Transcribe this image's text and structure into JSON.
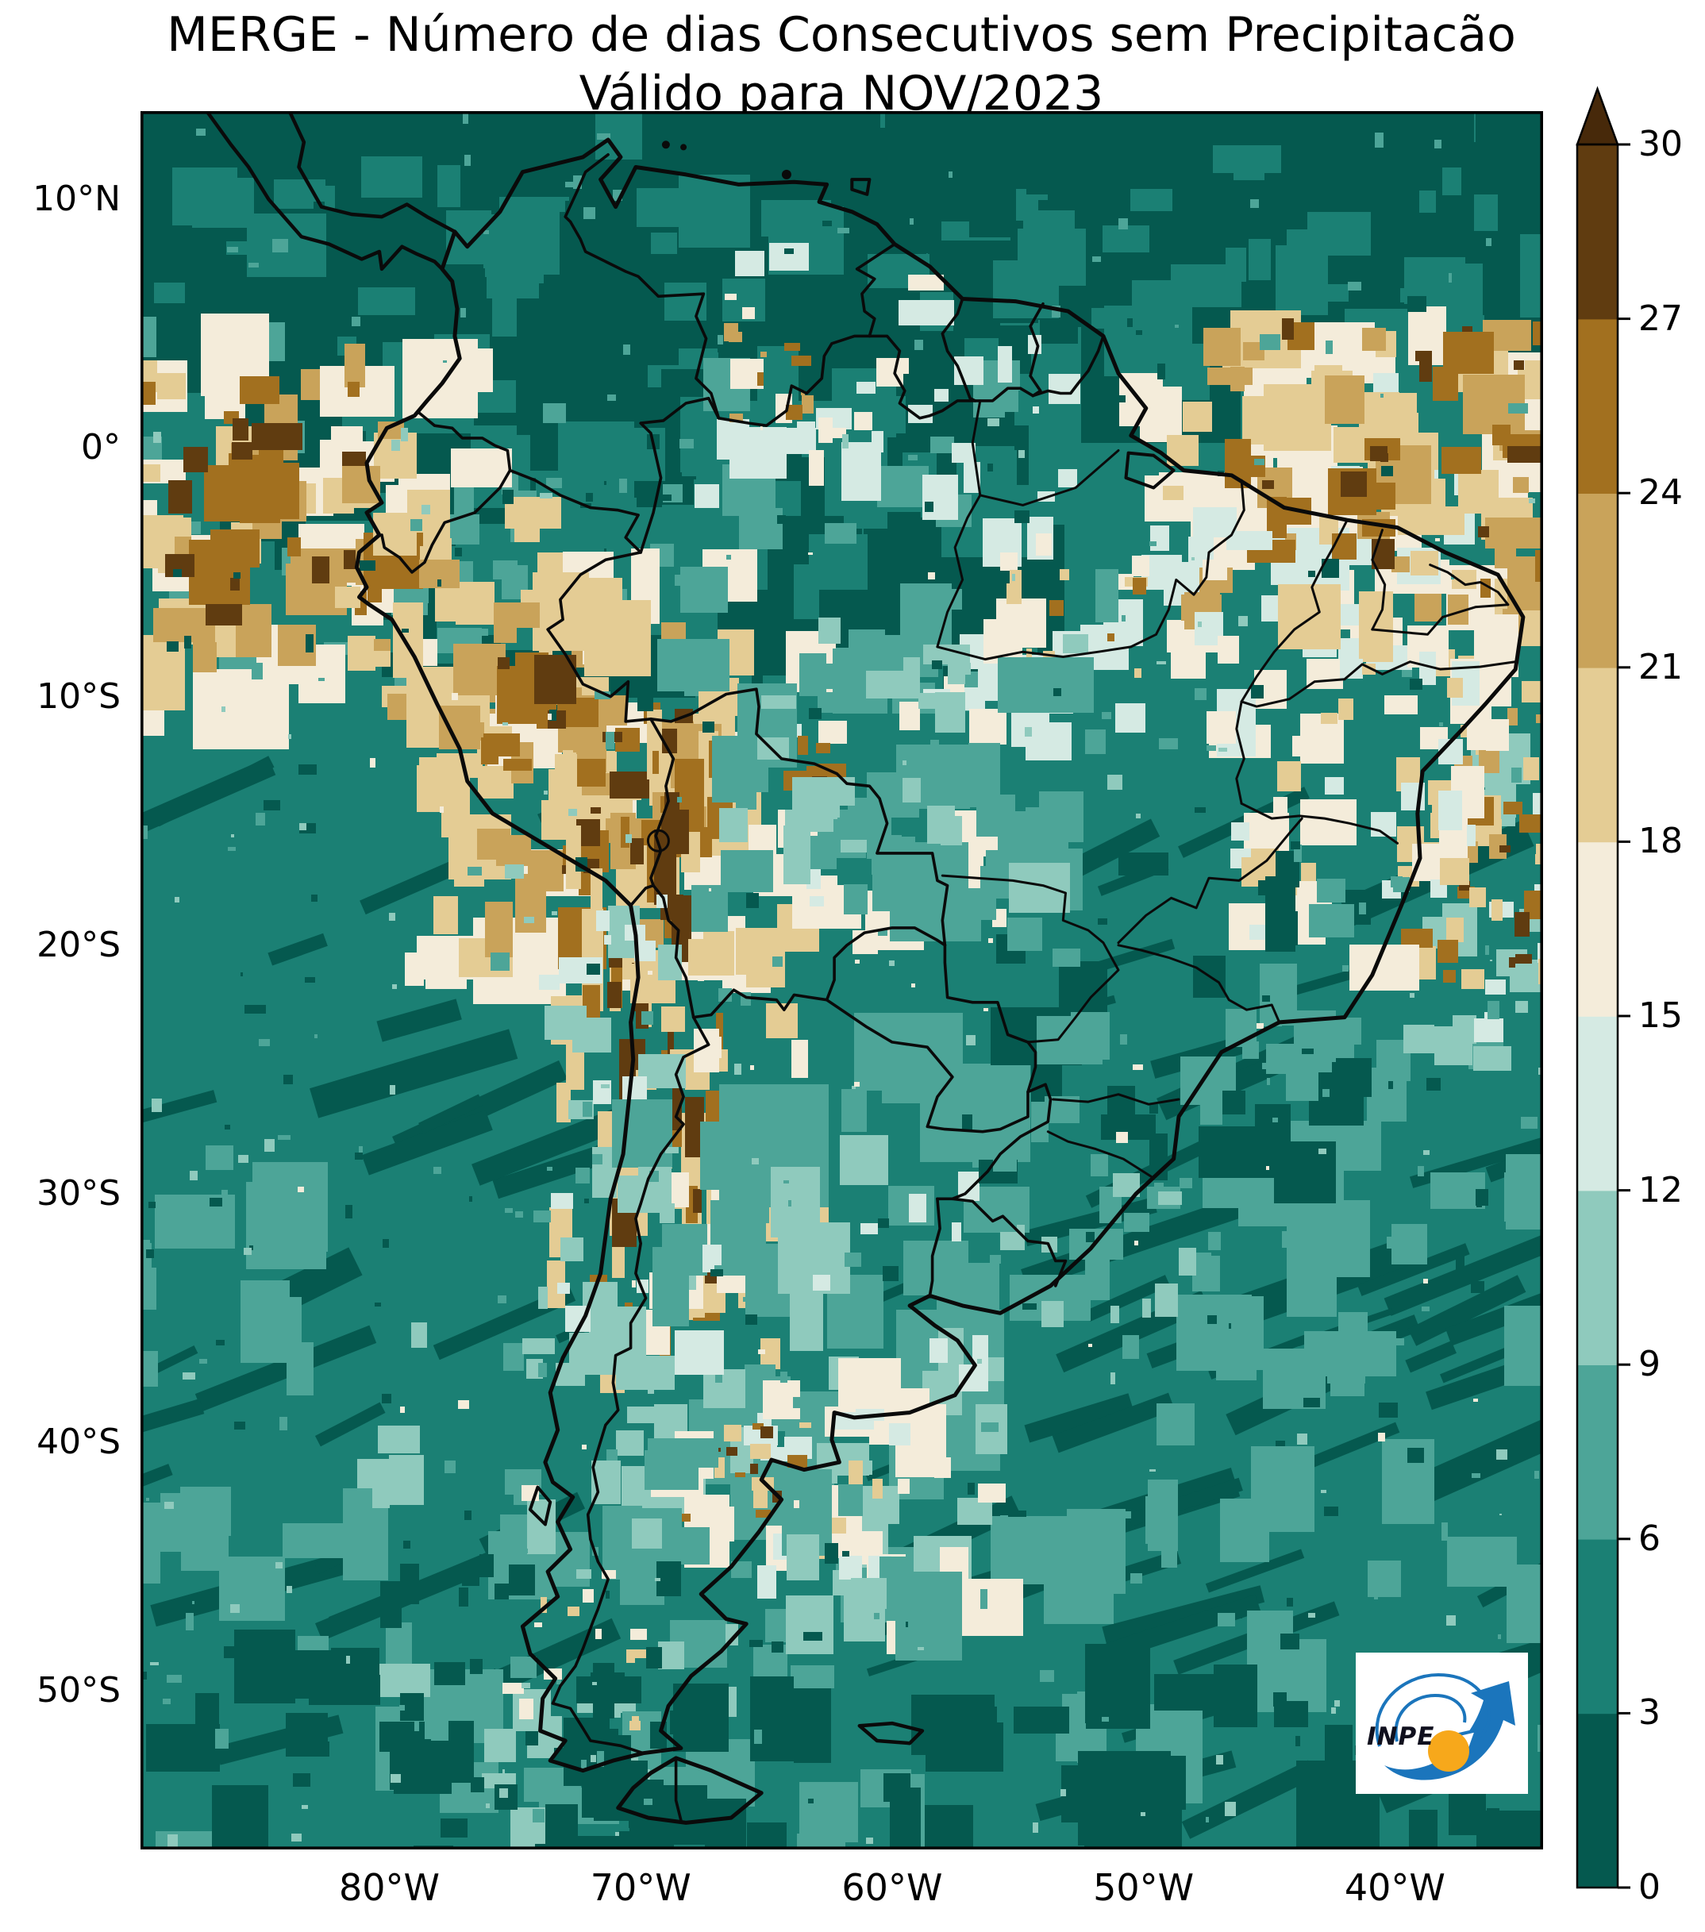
{
  "title": {
    "line1": "MERGE - Número de dias Consecutivos sem Precipitacão",
    "line2": "Válido para NOV/2023"
  },
  "axes": {
    "lat_ticks": [
      {
        "label": "10°N",
        "deg": 10
      },
      {
        "label": "0°",
        "deg": 0
      },
      {
        "label": "10°S",
        "deg": -10
      },
      {
        "label": "20°S",
        "deg": -20
      },
      {
        "label": "30°S",
        "deg": -30
      },
      {
        "label": "40°S",
        "deg": -40
      },
      {
        "label": "50°S",
        "deg": -50
      }
    ],
    "lon_ticks": [
      {
        "label": "80°W",
        "deg": -80
      },
      {
        "label": "70°W",
        "deg": -70
      },
      {
        "label": "60°W",
        "deg": -60
      },
      {
        "label": "50°W",
        "deg": -50
      },
      {
        "label": "40°W",
        "deg": -40
      }
    ]
  },
  "colorbar": {
    "tick_labels": [
      "0",
      "3",
      "6",
      "9",
      "12",
      "15",
      "18",
      "21",
      "24",
      "27",
      "30"
    ],
    "bin_colors": [
      "#05594F",
      "#1B8074",
      "#4DA598",
      "#8FCABD",
      "#D5EAE3",
      "#F4ECDA",
      "#E4CC94",
      "#C9A35A",
      "#A2701F",
      "#603C10"
    ],
    "over_color": "#47290A"
  },
  "map_theme": {
    "ocean_base": "#1B8074",
    "border_color": "#0a0a0a"
  },
  "logo": {
    "label": "INPE",
    "blue": "#1B75BC",
    "orange": "#F7A81B"
  },
  "chart_data": {
    "type": "heatmap",
    "title": "MERGE - Número de dias Consecutivos sem Precipitacão — Válido para NOV/2023",
    "colorbar_ticks": [
      0,
      3,
      6,
      9,
      12,
      15,
      18,
      21,
      24,
      27,
      30
    ],
    "colorbar_extend": "max",
    "x_tick_labels": [
      "80°W",
      "70°W",
      "60°W",
      "50°W",
      "40°W"
    ],
    "y_tick_labels": [
      "10°N",
      "0°",
      "10°S",
      "20°S",
      "30°S",
      "40°S",
      "50°S"
    ],
    "legend_position": "right"
  }
}
